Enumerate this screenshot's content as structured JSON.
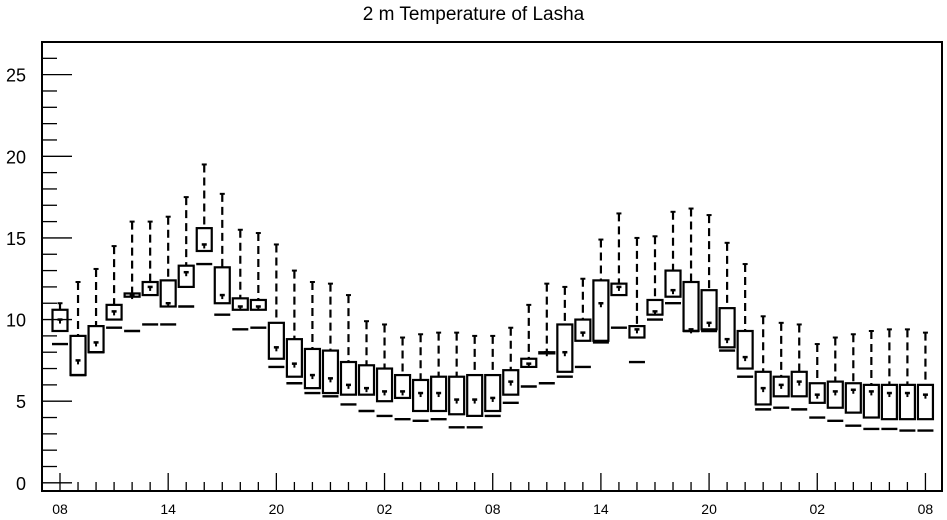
{
  "chart_data": {
    "type": "box",
    "title": "2 m Temperature of Lasha",
    "xlabel": "",
    "ylabel": "",
    "ylim": [
      -0.5,
      27
    ],
    "y_ticks": [
      "0",
      "5",
      "10",
      "15",
      "20",
      "25"
    ],
    "x_ticks": [
      "08",
      "14",
      "20",
      "02",
      "08",
      "14",
      "20",
      "02",
      "08"
    ],
    "grid": false,
    "boxes": [
      {
        "x": 0,
        "lo": 8.5,
        "q1": 9.3,
        "median": 10.0,
        "q3": 10.6,
        "hi": 11.0
      },
      {
        "x": 1,
        "lo": 6.6,
        "q1": 6.6,
        "median": 7.5,
        "q3": 9.0,
        "hi": 12.3
      },
      {
        "x": 2,
        "lo": 8.0,
        "q1": 8.0,
        "median": 8.6,
        "q3": 9.6,
        "hi": 13.1
      },
      {
        "x": 3,
        "lo": 9.5,
        "q1": 10.0,
        "median": 10.5,
        "q3": 10.9,
        "hi": 14.5
      },
      {
        "x": 4,
        "lo": 9.3,
        "q1": 11.4,
        "median": 11.5,
        "q3": 11.6,
        "hi": 16.0
      },
      {
        "x": 5,
        "lo": 9.7,
        "q1": 11.5,
        "median": 12.0,
        "q3": 12.3,
        "hi": 16.0
      },
      {
        "x": 6,
        "lo": 9.7,
        "q1": 10.8,
        "median": 11.0,
        "q3": 12.4,
        "hi": 16.3
      },
      {
        "x": 7,
        "lo": 10.8,
        "q1": 12.0,
        "median": 12.9,
        "q3": 13.3,
        "hi": 17.5
      },
      {
        "x": 8,
        "lo": 13.4,
        "q1": 14.2,
        "median": 14.6,
        "q3": 15.6,
        "hi": 19.5
      },
      {
        "x": 9,
        "lo": 10.3,
        "q1": 11.0,
        "median": 11.5,
        "q3": 13.2,
        "hi": 17.7
      },
      {
        "x": 10,
        "lo": 9.4,
        "q1": 10.6,
        "median": 10.8,
        "q3": 11.3,
        "hi": 15.5
      },
      {
        "x": 11,
        "lo": 9.5,
        "q1": 10.6,
        "median": 10.8,
        "q3": 11.2,
        "hi": 15.3
      },
      {
        "x": 12,
        "lo": 7.1,
        "q1": 7.6,
        "median": 8.3,
        "q3": 9.8,
        "hi": 14.6
      },
      {
        "x": 13,
        "lo": 6.1,
        "q1": 6.5,
        "median": 7.3,
        "q3": 8.8,
        "hi": 13.0
      },
      {
        "x": 14,
        "lo": 5.5,
        "q1": 5.8,
        "median": 6.6,
        "q3": 8.2,
        "hi": 12.3
      },
      {
        "x": 15,
        "lo": 5.3,
        "q1": 5.5,
        "median": 6.4,
        "q3": 8.1,
        "hi": 12.2
      },
      {
        "x": 16,
        "lo": 4.8,
        "q1": 5.4,
        "median": 6.0,
        "q3": 7.4,
        "hi": 11.5
      },
      {
        "x": 17,
        "lo": 4.4,
        "q1": 5.4,
        "median": 5.8,
        "q3": 7.2,
        "hi": 9.9
      },
      {
        "x": 18,
        "lo": 4.1,
        "q1": 5.0,
        "median": 5.6,
        "q3": 7.0,
        "hi": 9.7
      },
      {
        "x": 19,
        "lo": 3.9,
        "q1": 5.2,
        "median": 5.6,
        "q3": 6.6,
        "hi": 8.9
      },
      {
        "x": 20,
        "lo": 3.8,
        "q1": 4.4,
        "median": 5.5,
        "q3": 6.3,
        "hi": 9.1
      },
      {
        "x": 21,
        "lo": 3.9,
        "q1": 4.4,
        "median": 5.5,
        "q3": 6.5,
        "hi": 9.2
      },
      {
        "x": 22,
        "lo": 3.4,
        "q1": 4.2,
        "median": 5.1,
        "q3": 6.5,
        "hi": 9.2
      },
      {
        "x": 23,
        "lo": 3.4,
        "q1": 4.1,
        "median": 5.1,
        "q3": 6.6,
        "hi": 9.0
      },
      {
        "x": 24,
        "lo": 4.1,
        "q1": 4.4,
        "median": 5.2,
        "q3": 6.6,
        "hi": 9.0
      },
      {
        "x": 25,
        "lo": 4.9,
        "q1": 5.4,
        "median": 6.2,
        "q3": 6.9,
        "hi": 9.5
      },
      {
        "x": 26,
        "lo": 5.9,
        "q1": 7.1,
        "median": 7.3,
        "q3": 7.6,
        "hi": 10.9
      },
      {
        "x": 27,
        "lo": 6.1,
        "q1": 8.0,
        "median": 8.0,
        "q3": 8.0,
        "hi": 12.2
      },
      {
        "x": 28,
        "lo": 6.5,
        "q1": 6.8,
        "median": 8.0,
        "q3": 9.7,
        "hi": 12.0
      },
      {
        "x": 29,
        "lo": 7.1,
        "q1": 8.7,
        "median": 9.2,
        "q3": 10.0,
        "hi": 12.5
      },
      {
        "x": 30,
        "lo": 8.6,
        "q1": 8.7,
        "median": 11.0,
        "q3": 12.4,
        "hi": 14.9
      },
      {
        "x": 31,
        "lo": 9.5,
        "q1": 11.5,
        "median": 12.0,
        "q3": 12.2,
        "hi": 16.5
      },
      {
        "x": 32,
        "lo": 7.4,
        "q1": 8.9,
        "median": 9.4,
        "q3": 9.6,
        "hi": 15.0
      },
      {
        "x": 33,
        "lo": 10.0,
        "q1": 10.3,
        "median": 10.5,
        "q3": 11.2,
        "hi": 15.1
      },
      {
        "x": 34,
        "lo": 11.0,
        "q1": 11.4,
        "median": 11.8,
        "q3": 13.0,
        "hi": 16.6
      },
      {
        "x": 35,
        "lo": 9.3,
        "q1": 9.3,
        "median": 9.4,
        "q3": 12.3,
        "hi": 16.8
      },
      {
        "x": 36,
        "lo": 9.3,
        "q1": 9.4,
        "median": 9.8,
        "q3": 11.8,
        "hi": 16.4
      },
      {
        "x": 37,
        "lo": 8.1,
        "q1": 8.3,
        "median": 8.8,
        "q3": 10.7,
        "hi": 14.7
      },
      {
        "x": 38,
        "lo": 6.5,
        "q1": 7.0,
        "median": 7.7,
        "q3": 9.3,
        "hi": 13.4
      },
      {
        "x": 39,
        "lo": 4.5,
        "q1": 4.8,
        "median": 5.8,
        "q3": 6.8,
        "hi": 10.2
      },
      {
        "x": 40,
        "lo": 4.6,
        "q1": 5.3,
        "median": 6.0,
        "q3": 6.5,
        "hi": 9.8
      },
      {
        "x": 41,
        "lo": 4.5,
        "q1": 5.3,
        "median": 6.2,
        "q3": 6.8,
        "hi": 9.7
      },
      {
        "x": 42,
        "lo": 4.0,
        "q1": 4.9,
        "median": 5.4,
        "q3": 6.1,
        "hi": 8.5
      },
      {
        "x": 43,
        "lo": 3.8,
        "q1": 4.6,
        "median": 5.6,
        "q3": 6.2,
        "hi": 8.9
      },
      {
        "x": 44,
        "lo": 3.5,
        "q1": 4.3,
        "median": 5.7,
        "q3": 6.1,
        "hi": 9.1
      },
      {
        "x": 45,
        "lo": 3.3,
        "q1": 4.0,
        "median": 5.6,
        "q3": 6.0,
        "hi": 9.3
      },
      {
        "x": 46,
        "lo": 3.3,
        "q1": 3.9,
        "median": 5.5,
        "q3": 6.0,
        "hi": 9.4
      },
      {
        "x": 47,
        "lo": 3.2,
        "q1": 3.9,
        "median": 5.5,
        "q3": 6.0,
        "hi": 9.4
      },
      {
        "x": 48,
        "lo": 3.2,
        "q1": 3.9,
        "median": 5.4,
        "q3": 6.0,
        "hi": 9.2
      }
    ]
  }
}
